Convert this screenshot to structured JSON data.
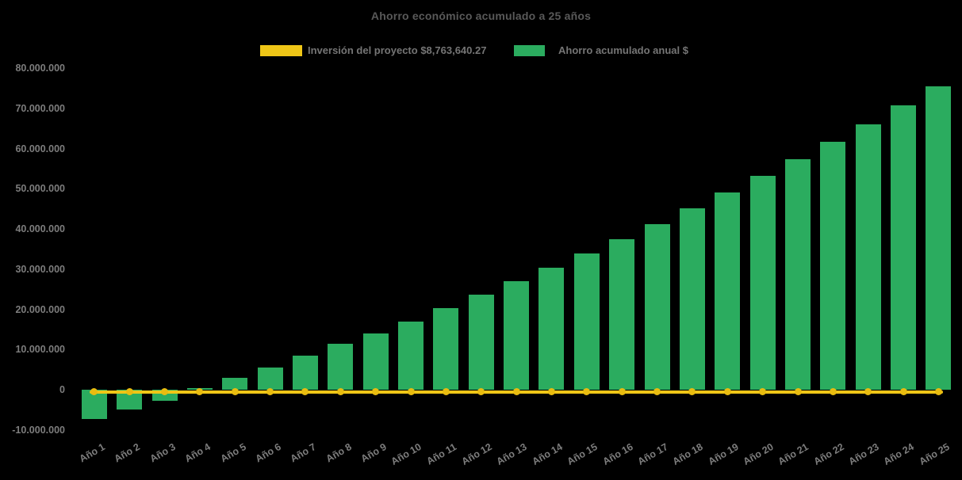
{
  "page": {
    "background": "#000000"
  },
  "title": "Ahorro económico acumulado a 25 años",
  "legend": {
    "items": [
      {
        "label": "Inversión del proyecto $8,763,640.27",
        "color": "#EFC617",
        "series_type": "line"
      },
      {
        "label": "Ahorro acumulado anual $",
        "color": "#2BAC5F",
        "series_type": "bar"
      }
    ]
  },
  "chart_data": {
    "type": "bar",
    "title": "Ahorro económico acumulado a 25 años",
    "categories": [
      "Año 1",
      "Año 2",
      "Año 3",
      "Año 4",
      "Año 5",
      "Año 6",
      "Año 7",
      "Año 8",
      "Año 9",
      "Año 10",
      "Año 11",
      "Año 12",
      "Año 13",
      "Año 14",
      "Año 15",
      "Año 16",
      "Año 17",
      "Año 18",
      "Año 19",
      "Año 20",
      "Año 21",
      "Año 22",
      "Año 23",
      "Año 24",
      "Año 25"
    ],
    "series": [
      {
        "name": "Ahorro acumulado anual $",
        "type": "bar",
        "color": "#2BAC5F",
        "values": [
          -7200000,
          -5000000,
          -2800000,
          400000,
          2900000,
          5600000,
          8400000,
          11400000,
          14000000,
          17000000,
          20300000,
          23700000,
          27000000,
          30300000,
          33900000,
          37500000,
          41200000,
          45100000,
          49100000,
          53200000,
          57300000,
          61700000,
          66100000,
          70800000,
          75400000
        ]
      },
      {
        "name": "Inversión del proyecto $8,763,640.27",
        "type": "line",
        "color": "#EFC617",
        "marker": "circle",
        "marker_color": "#E9BC10",
        "values": [
          0,
          0,
          0,
          0,
          0,
          0,
          0,
          0,
          0,
          0,
          0,
          0,
          0,
          0,
          0,
          0,
          0,
          0,
          0,
          0,
          0,
          0,
          0,
          0,
          0
        ]
      }
    ],
    "xlabel": "",
    "ylabel": "",
    "ylim": [
      -10000000,
      80000000
    ],
    "y_ticks": [
      {
        "label": "80.000.000",
        "value": 80000000
      },
      {
        "label": "70.000.000",
        "value": 70000000
      },
      {
        "label": "60.000.000",
        "value": 60000000
      },
      {
        "label": "50.000.000",
        "value": 50000000
      },
      {
        "label": "40.000.000",
        "value": 40000000
      },
      {
        "label": "30.000.000",
        "value": 30000000
      },
      {
        "label": "20.000.000",
        "value": 20000000
      },
      {
        "label": "10.000.000",
        "value": 10000000
      },
      {
        "label": "0",
        "value": 0
      },
      {
        "label": "-10.000.000",
        "value": -10000000
      }
    ],
    "grid": false,
    "legend_position": "top",
    "background": "#000000"
  }
}
